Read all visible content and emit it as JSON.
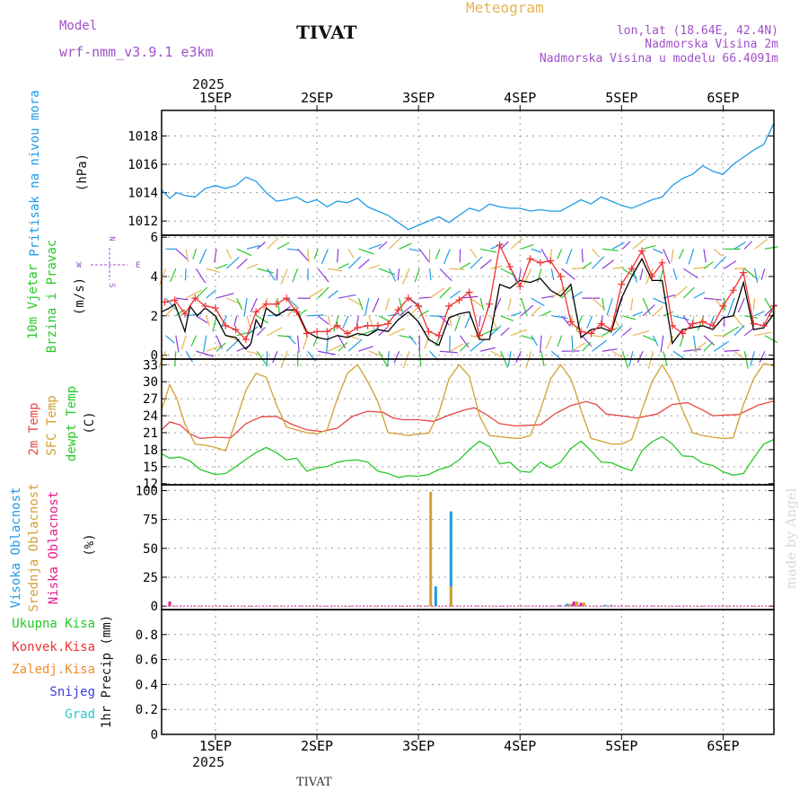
{
  "header": {
    "model_label": "Model",
    "model_name": "wrf-nmm_v3.9.1 e3km",
    "station": "TIVAT",
    "meteogram": "Meteogram",
    "lonlat": "lon,lat (18.64E, 42.4N)",
    "elevation": "Nadmorska Visina 2m",
    "model_elevation": "Nadmorska Visina u modelu 66.4091m"
  },
  "footer": {
    "station": "TIVAT",
    "credit": "made by Angel"
  },
  "colors": {
    "pressure": "#1e9be6",
    "wind_speed": "#000000",
    "gust": "#f03232",
    "temp2m": "#e64646",
    "sfc_temp": "#d2a032",
    "dewpt": "#28c828",
    "high_cloud": "#1e9be6",
    "mid_cloud": "#d2a032",
    "low_cloud": "#e61e8c",
    "total_precip": "#28c828",
    "conv_precip": "#f03232",
    "frozen_precip": "#f08c28",
    "snow": "#3c3cdc",
    "graupel": "#28c8c8",
    "purple": "#a050c8"
  },
  "chart_data": {
    "type": "meteogram",
    "x_axis": {
      "year": "2025",
      "ticks": [
        "1SEP",
        "2SEP",
        "3SEP",
        "4SEP",
        "5SEP",
        "6SEP"
      ],
      "range_days": [
        0.47,
        6.5
      ],
      "tick_days": [
        1,
        2,
        3,
        4,
        5,
        6
      ]
    },
    "panels": [
      {
        "name": "pressure",
        "ylabel": [
          "Pritisak na nivou mora",
          "(hPa)"
        ],
        "ylim": [
          1011,
          1019.8
        ],
        "yticks": [
          1012,
          1014,
          1016,
          1018
        ],
        "series": [
          {
            "name": "MSLP",
            "color_key": "pressure",
            "x": [
              0.47,
              0.55,
              0.62,
              0.7,
              0.8,
              0.9,
              1.0,
              1.1,
              1.2,
              1.3,
              1.4,
              1.5,
              1.6,
              1.7,
              1.8,
              1.9,
              2.0,
              2.1,
              2.2,
              2.3,
              2.4,
              2.5,
              2.6,
              2.7,
              2.8,
              2.9,
              3.0,
              3.1,
              3.2,
              3.3,
              3.4,
              3.5,
              3.6,
              3.7,
              3.8,
              3.9,
              4.0,
              4.1,
              4.2,
              4.3,
              4.4,
              4.5,
              4.6,
              4.7,
              4.8,
              4.9,
              5.0,
              5.1,
              5.2,
              5.3,
              5.4,
              5.5,
              5.6,
              5.7,
              5.8,
              5.9,
              6.0,
              6.1,
              6.2,
              6.3,
              6.4,
              6.5
            ],
            "values": [
              1014.2,
              1013.6,
              1014.0,
              1013.8,
              1013.7,
              1014.3,
              1014.5,
              1014.3,
              1014.5,
              1015.1,
              1014.8,
              1014.0,
              1013.4,
              1013.5,
              1013.7,
              1013.3,
              1013.5,
              1013.0,
              1013.4,
              1013.3,
              1013.6,
              1013.0,
              1012.7,
              1012.4,
              1011.9,
              1011.4,
              1011.7,
              1012.0,
              1012.3,
              1011.9,
              1012.4,
              1012.9,
              1012.7,
              1013.2,
              1013.0,
              1012.9,
              1012.9,
              1012.7,
              1012.8,
              1012.7,
              1012.7,
              1013.1,
              1013.5,
              1013.2,
              1013.7,
              1013.4,
              1013.1,
              1012.9,
              1013.2,
              1013.5,
              1013.7,
              1014.5,
              1015.0,
              1015.3,
              1015.9,
              1015.5,
              1015.3,
              1016.0,
              1016.5,
              1017.0,
              1017.4,
              1018.9
            ]
          }
        ]
      },
      {
        "name": "wind",
        "ylabel": [
          "10m Vjetar",
          "Brzina i Pravac",
          "(m/s)"
        ],
        "compass": {
          "n": "N",
          "s": "S",
          "w": "W",
          "e": "E"
        },
        "ylim": [
          -0.2,
          6.1
        ],
        "yticks": [
          0,
          2,
          4,
          6
        ],
        "series": [
          {
            "name": "wind speed",
            "color_key": "wind_speed",
            "x": [
              0.47,
              0.55,
              0.6,
              0.7,
              0.75,
              0.82,
              0.9,
              1.0,
              1.1,
              1.2,
              1.3,
              1.35,
              1.4,
              1.45,
              1.5,
              1.6,
              1.7,
              1.8,
              1.9,
              2.0,
              2.1,
              2.2,
              2.3,
              2.4,
              2.5,
              2.6,
              2.7,
              2.8,
              2.9,
              3.0,
              3.1,
              3.2,
              3.3,
              3.4,
              3.5,
              3.6,
              3.7,
              3.8,
              3.9,
              4.0,
              4.1,
              4.2,
              4.3,
              4.4,
              4.5,
              4.6,
              4.7,
              4.8,
              4.9,
              5.0,
              5.1,
              5.2,
              5.3,
              5.4,
              5.5,
              5.6,
              5.7,
              5.8,
              5.9,
              6.0,
              6.1,
              6.2,
              6.3,
              6.4,
              6.5
            ],
            "values": [
              2.2,
              2.4,
              2.6,
              1.2,
              2.5,
              2.0,
              2.4,
              2.0,
              1.0,
              0.9,
              0.3,
              0.6,
              1.8,
              1.4,
              2.4,
              2.0,
              2.3,
              2.3,
              1.2,
              0.9,
              0.8,
              1.0,
              0.9,
              1.1,
              1.0,
              1.3,
              1.2,
              1.8,
              2.2,
              1.7,
              0.8,
              0.5,
              1.9,
              2.1,
              2.2,
              0.8,
              0.8,
              3.6,
              3.4,
              3.8,
              3.7,
              3.9,
              3.3,
              3.0,
              3.6,
              0.9,
              1.3,
              1.4,
              1.2,
              2.9,
              4.0,
              4.9,
              3.8,
              3.8,
              0.6,
              1.3,
              1.4,
              1.5,
              1.3,
              1.9,
              2.0,
              3.7,
              1.3,
              1.4,
              2.1
            ]
          },
          {
            "name": "gust",
            "color_key": "gust",
            "x": [
              0.5,
              0.6,
              0.7,
              0.8,
              0.9,
              1.0,
              1.1,
              1.2,
              1.3,
              1.4,
              1.5,
              1.6,
              1.7,
              1.8,
              1.9,
              2.0,
              2.1,
              2.2,
              2.3,
              2.4,
              2.5,
              2.6,
              2.7,
              2.8,
              2.9,
              3.0,
              3.1,
              3.2,
              3.3,
              3.4,
              3.5,
              3.6,
              3.7,
              3.8,
              3.9,
              4.0,
              4.1,
              4.2,
              4.3,
              4.4,
              4.5,
              4.6,
              4.7,
              4.8,
              4.9,
              5.0,
              5.1,
              5.2,
              5.3,
              5.4,
              5.5,
              5.6,
              5.7,
              5.8,
              5.9,
              6.0,
              6.1,
              6.2,
              6.3,
              6.4,
              6.5
            ],
            "values": [
              2.7,
              2.8,
              2.1,
              2.9,
              2.5,
              2.4,
              1.5,
              1.3,
              0.8,
              2.2,
              2.6,
              2.6,
              2.9,
              2.2,
              1.1,
              1.2,
              1.2,
              1.5,
              1.1,
              1.4,
              1.5,
              1.5,
              1.6,
              2.3,
              2.9,
              2.5,
              1.2,
              1.0,
              2.5,
              2.8,
              3.2,
              1.0,
              2.6,
              5.6,
              4.5,
              3.5,
              4.9,
              4.7,
              4.8,
              4.0,
              1.7,
              1.2,
              1.1,
              1.6,
              1.3,
              3.6,
              4.4,
              5.3,
              4.0,
              4.7,
              1.5,
              1.1,
              1.6,
              1.7,
              1.5,
              2.5,
              3.3,
              4.2,
              1.6,
              1.5,
              2.5
            ]
          }
        ]
      },
      {
        "name": "temperature",
        "ylabel": [
          "2m Temp",
          "SFC Temp",
          "dewpt Temp",
          "(C)"
        ],
        "ylim": [
          11.8,
          34
        ],
        "yticks": [
          12,
          15,
          18,
          21,
          24,
          27,
          30,
          33
        ],
        "series": [
          {
            "name": "2m Temp",
            "color_key": "temp2m",
            "x": [
              0.47,
              0.55,
              0.65,
              0.75,
              0.85,
              1.0,
              1.15,
              1.3,
              1.45,
              1.6,
              1.75,
              1.9,
              2.05,
              2.2,
              2.35,
              2.5,
              2.65,
              2.75,
              2.85,
              3.0,
              3.15,
              3.3,
              3.45,
              3.55,
              3.65,
              3.8,
              3.95,
              4.05,
              4.2,
              4.35,
              4.5,
              4.65,
              4.75,
              4.85,
              5.0,
              5.15,
              5.35,
              5.5,
              5.65,
              5.8,
              5.9,
              6.0,
              6.15,
              6.35,
              6.5
            ],
            "values": [
              21.5,
              22.9,
              22.4,
              20.8,
              20.0,
              20.2,
              20.1,
              22.6,
              23.8,
              23.9,
              22.5,
              21.5,
              21.2,
              21.8,
              23.9,
              24.8,
              24.6,
              23.6,
              23.3,
              23.3,
              23.0,
              24.1,
              25.0,
              25.4,
              24.4,
              22.6,
              22.2,
              22.3,
              22.4,
              24.4,
              25.8,
              26.5,
              26.0,
              24.3,
              24.0,
              23.6,
              24.3,
              26.0,
              26.3,
              25.0,
              24.0,
              24.1,
              24.2,
              25.9,
              26.6
            ]
          },
          {
            "name": "SFC Temp",
            "color_key": "sfc_temp",
            "x": [
              0.47,
              0.55,
              0.62,
              0.7,
              0.8,
              0.9,
              1.0,
              1.1,
              1.2,
              1.3,
              1.4,
              1.5,
              1.6,
              1.7,
              1.8,
              1.9,
              2.0,
              2.1,
              2.2,
              2.3,
              2.4,
              2.5,
              2.6,
              2.7,
              2.8,
              2.9,
              3.0,
              3.1,
              3.2,
              3.3,
              3.4,
              3.5,
              3.6,
              3.7,
              3.8,
              3.9,
              4.0,
              4.1,
              4.2,
              4.3,
              4.4,
              4.5,
              4.55,
              4.6,
              4.7,
              4.8,
              4.9,
              5.0,
              5.1,
              5.2,
              5.3,
              5.4,
              5.5,
              5.6,
              5.7,
              5.8,
              5.9,
              6.0,
              6.1,
              6.2,
              6.3,
              6.4,
              6.5
            ],
            "values": [
              25.0,
              29.5,
              27.0,
              22.5,
              19.0,
              18.8,
              18.4,
              17.8,
              23.0,
              28.5,
              31.5,
              30.8,
              26.0,
              22.0,
              21.5,
              21.0,
              20.8,
              21.5,
              27.0,
              31.5,
              33.0,
              30.0,
              26.5,
              21.0,
              20.8,
              20.5,
              20.8,
              20.9,
              24.5,
              30.5,
              33.0,
              31.0,
              24.0,
              20.5,
              20.3,
              20.1,
              20.0,
              20.5,
              25.0,
              30.5,
              33.0,
              30.5,
              28.0,
              25.0,
              20.0,
              19.5,
              19.0,
              19.0,
              19.8,
              25.0,
              30.0,
              33.0,
              30.0,
              25.0,
              21.0,
              20.5,
              20.2,
              20.0,
              20.1,
              26.0,
              30.5,
              33.2,
              32.8
            ]
          },
          {
            "name": "dewpt Temp",
            "color_key": "dewpt",
            "x": [
              0.47,
              0.55,
              0.65,
              0.75,
              0.85,
              1.0,
              1.1,
              1.2,
              1.3,
              1.4,
              1.5,
              1.6,
              1.7,
              1.8,
              1.9,
              2.0,
              2.1,
              2.2,
              2.3,
              2.4,
              2.5,
              2.6,
              2.7,
              2.8,
              2.9,
              3.0,
              3.1,
              3.2,
              3.3,
              3.4,
              3.5,
              3.6,
              3.7,
              3.8,
              3.9,
              4.0,
              4.1,
              4.2,
              4.3,
              4.4,
              4.5,
              4.6,
              4.7,
              4.8,
              4.9,
              5.0,
              5.1,
              5.2,
              5.3,
              5.4,
              5.5,
              5.6,
              5.7,
              5.8,
              5.9,
              6.0,
              6.1,
              6.2,
              6.3,
              6.4,
              6.5
            ],
            "values": [
              17.3,
              16.5,
              16.7,
              16.0,
              14.5,
              13.6,
              13.8,
              15.0,
              16.3,
              17.5,
              18.4,
              17.5,
              16.2,
              16.5,
              14.2,
              14.8,
              15.0,
              15.8,
              16.1,
              16.2,
              15.8,
              14.2,
              13.8,
              13.1,
              13.4,
              13.3,
              13.6,
              14.5,
              15.0,
              16.2,
              18.0,
              19.5,
              18.5,
              15.5,
              15.8,
              14.2,
              14.0,
              15.8,
              14.8,
              15.8,
              18.2,
              19.5,
              17.8,
              15.8,
              15.7,
              14.9,
              14.3,
              17.8,
              19.4,
              20.3,
              19.0,
              16.9,
              16.8,
              15.6,
              15.2,
              14.1,
              13.5,
              13.8,
              16.5,
              19.0,
              19.8
            ]
          }
        ]
      },
      {
        "name": "cloud",
        "ylabel": [
          "Visoka Oblacnost",
          "Srednja Oblacnost",
          "Niska Oblacnost",
          "(%)"
        ],
        "ylim": [
          -3,
          105
        ],
        "yticks": [
          0,
          25,
          50,
          75,
          100
        ],
        "series": [
          {
            "name": "Visoka Oblacnost",
            "color_key": "high_cloud",
            "x": [
              3.17,
              3.32,
              4.39,
              4.46,
              4.52,
              4.59,
              4.84,
              4.9
            ],
            "values": [
              17,
              82,
              1,
              2,
              2,
              1,
              1,
              1
            ]
          },
          {
            "name": "Srednja Oblacnost",
            "color_key": "mid_cloud",
            "x": [
              3.12,
              3.32,
              4.49,
              4.56,
              4.63
            ],
            "values": [
              99,
              17,
              2,
              4,
              3
            ]
          },
          {
            "name": "Niska Oblacnost",
            "color_key": "low_cloud",
            "x": [
              0.55,
              4.53,
              4.6
            ],
            "values": [
              4,
              4,
              3
            ]
          }
        ]
      },
      {
        "name": "precip",
        "ylabel": [
          "1hr Precip (mm)"
        ],
        "legend": [
          "Ukupna Kisa",
          "Konvek.Kisa",
          "Zaledj.Kisa",
          "Snijeg",
          "Grad"
        ],
        "ylim": [
          0,
          1.0
        ],
        "yticks": [
          0,
          0.2,
          0.4,
          0.6,
          0.8
        ],
        "series": []
      }
    ]
  }
}
